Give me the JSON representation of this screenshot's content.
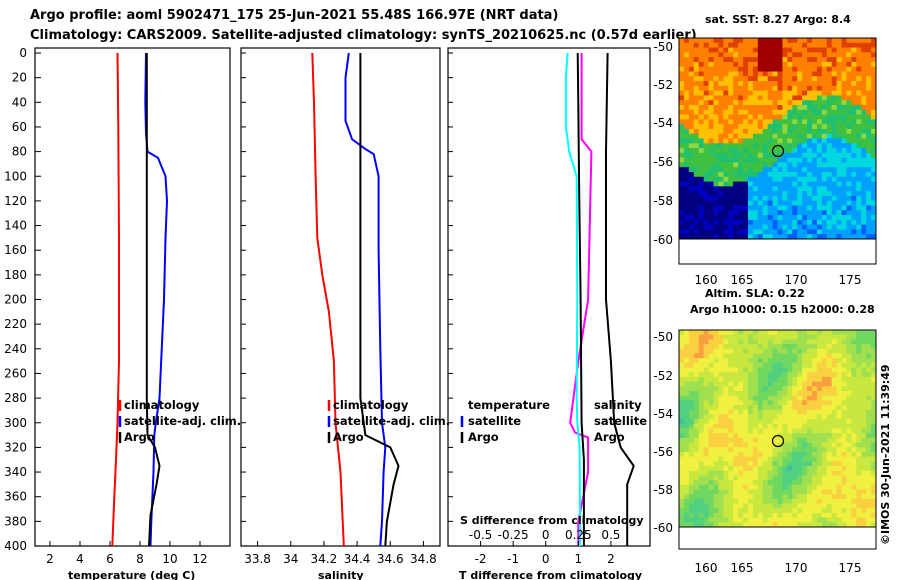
{
  "header": {
    "title_line1": "Argo profile: aoml 5902471_175 25-Jun-2021 55.48S 166.97E (NRT data)",
    "title_line2": "Climatology: CARS2009. Satellite-adjusted climatology: synTS_20210625.nc (0.57d earlier)"
  },
  "depth_ticks": [
    "0",
    "20",
    "40",
    "60",
    "80",
    "100",
    "120",
    "140",
    "160",
    "180",
    "200",
    "220",
    "240",
    "260",
    "280",
    "300",
    "320",
    "340",
    "360",
    "380",
    "400"
  ],
  "panels": {
    "temperature": {
      "xlabel": "temperature (deg C)",
      "ticks": [
        "2",
        "4",
        "6",
        "8",
        "10",
        "12"
      ],
      "legend": [
        "climatology",
        "satellite-adj. clim.",
        "Argo"
      ]
    },
    "salinity": {
      "xlabel": "salinity",
      "ticks": [
        "33.8",
        "34",
        "34.2",
        "34.4",
        "34.6",
        "34.8"
      ],
      "legend": [
        "climatology",
        "satellite-adj. clim.",
        "Argo"
      ]
    },
    "difference": {
      "xlabel": "T difference from climatology",
      "ticks": [
        "-2",
        "-1",
        "0",
        "1",
        "2"
      ],
      "s_label": "S difference from climatology",
      "s_ticks": [
        "-0.5",
        "-0.25",
        "0",
        "0.25",
        "0.5"
      ],
      "legend_left_title": "temperature",
      "legend_left": [
        "satellite",
        "Argo"
      ],
      "legend_right_title": "salinity",
      "legend_right": [
        "satellite",
        "Argo"
      ]
    }
  },
  "maps": {
    "sst_title": "sat. SST: 8.27 Argo: 8.4",
    "sla_title": "Altim. SLA: 0.22",
    "h_title": "Argo h1000: 0.15 h2000: 0.28",
    "lat_ticks": [
      "-50",
      "-52",
      "-54",
      "-56",
      "-58",
      "-60"
    ],
    "lon_ticks": [
      "160",
      "165",
      "170",
      "175"
    ],
    "credit": "©IMOS 30-Jun-2021 11:39:49"
  },
  "colors": {
    "climatology": "#ff0000",
    "satellite": "#0000ff",
    "argo": "#000000",
    "t_sat": "#ff00ff",
    "s_sat": "#00ffff",
    "s_argo": "#000000"
  },
  "chart_data": [
    {
      "type": "line",
      "title": "temperature (deg C)",
      "xlabel": "temperature (deg C)",
      "ylabel": "depth",
      "xlim": [
        1,
        14
      ],
      "ylim": [
        400,
        0
      ],
      "series": [
        {
          "name": "climatology",
          "color": "#ff0000",
          "points": [
            [
              6.5,
              0
            ],
            [
              6.55,
              60
            ],
            [
              6.6,
              150
            ],
            [
              6.6,
              250
            ],
            [
              6.5,
              300
            ],
            [
              6.4,
              330
            ],
            [
              6.25,
              370
            ],
            [
              6.15,
              400
            ]
          ]
        },
        {
          "name": "satellite-adj. clim.",
          "color": "#0000ff",
          "points": [
            [
              8.4,
              0
            ],
            [
              8.35,
              40
            ],
            [
              8.4,
              65
            ],
            [
              8.5,
              80
            ],
            [
              9.2,
              85
            ],
            [
              9.7,
              100
            ],
            [
              9.8,
              120
            ],
            [
              9.7,
              150
            ],
            [
              9.6,
              200
            ],
            [
              9.3,
              280
            ],
            [
              9.05,
              300
            ],
            [
              8.95,
              310
            ],
            [
              8.9,
              340
            ],
            [
              8.75,
              380
            ],
            [
              8.7,
              400
            ]
          ]
        },
        {
          "name": "Argo",
          "color": "#000000",
          "points": [
            [
              8.45,
              0
            ],
            [
              8.45,
              100
            ],
            [
              8.45,
              200
            ],
            [
              8.45,
              280
            ],
            [
              8.5,
              310
            ],
            [
              9.0,
              320
            ],
            [
              9.3,
              335
            ],
            [
              9.1,
              350
            ],
            [
              8.7,
              375
            ],
            [
              8.6,
              400
            ]
          ]
        }
      ]
    },
    {
      "type": "line",
      "title": "salinity",
      "xlabel": "salinity",
      "ylabel": "depth",
      "xlim": [
        33.7,
        34.9
      ],
      "ylim": [
        400,
        0
      ],
      "series": [
        {
          "name": "climatology",
          "color": "#ff0000",
          "points": [
            [
              34.13,
              0
            ],
            [
              34.14,
              40
            ],
            [
              34.15,
              100
            ],
            [
              34.16,
              150
            ],
            [
              34.19,
              180
            ],
            [
              34.23,
              210
            ],
            [
              34.26,
              250
            ],
            [
              34.27,
              300
            ],
            [
              34.3,
              340
            ],
            [
              34.32,
              400
            ]
          ]
        },
        {
          "name": "satellite-adj. clim.",
          "color": "#0000ff",
          "points": [
            [
              34.35,
              0
            ],
            [
              34.33,
              20
            ],
            [
              34.33,
              55
            ],
            [
              34.37,
              70
            ],
            [
              34.45,
              78
            ],
            [
              34.5,
              82
            ],
            [
              34.53,
              100
            ],
            [
              34.53,
              160
            ],
            [
              34.54,
              240
            ],
            [
              34.55,
              300
            ],
            [
              34.57,
              320
            ],
            [
              34.56,
              340
            ],
            [
              34.55,
              380
            ],
            [
              34.54,
              400
            ]
          ]
        },
        {
          "name": "Argo",
          "color": "#000000",
          "points": [
            [
              34.42,
              0
            ],
            [
              34.42,
              100
            ],
            [
              34.42,
              200
            ],
            [
              34.42,
              280
            ],
            [
              34.45,
              310
            ],
            [
              34.6,
              320
            ],
            [
              34.65,
              335
            ],
            [
              34.62,
              350
            ],
            [
              34.58,
              380
            ],
            [
              34.57,
              400
            ]
          ]
        }
      ]
    },
    {
      "type": "line",
      "title": "T difference from climatology",
      "xlabel": "T difference from climatology",
      "ylabel": "depth",
      "xlim": [
        -3,
        3.2
      ],
      "ylim": [
        400,
        0
      ],
      "secondary_xlabel": "S difference from climatology",
      "secondary_xlim": [
        -0.75,
        0.8
      ],
      "series": [
        {
          "name": "temperature satellite",
          "color": "#ff00ff",
          "points": [
            [
              1.1,
              0
            ],
            [
              1.1,
              70
            ],
            [
              1.4,
              80
            ],
            [
              1.3,
              200
            ],
            [
              1.0,
              250
            ],
            [
              0.75,
              300
            ],
            [
              0.9,
              308
            ],
            [
              1.3,
              312
            ],
            [
              1.3,
              340
            ],
            [
              1.0,
              380
            ],
            [
              1.0,
              400
            ]
          ]
        },
        {
          "name": "temperature Argo",
          "color": "#000000",
          "points": [
            [
              1.9,
              0
            ],
            [
              1.85,
              80
            ],
            [
              1.85,
              200
            ],
            [
              2.0,
              250
            ],
            [
              2.1,
              300
            ],
            [
              2.3,
              320
            ],
            [
              2.7,
              335
            ],
            [
              2.5,
              350
            ],
            [
              2.5,
              400
            ]
          ]
        },
        {
          "name": "salinity satellite",
          "color": "#00ffff",
          "points": [
            [
              0.67,
              0
            ],
            [
              0.62,
              20
            ],
            [
              0.62,
              60
            ],
            [
              0.72,
              80
            ],
            [
              0.95,
              100
            ],
            [
              0.97,
              200
            ],
            [
              0.95,
              280
            ],
            [
              0.97,
              300
            ],
            [
              1.04,
              320
            ],
            [
              1.05,
              380
            ],
            [
              1.05,
              400
            ]
          ]
        },
        {
          "name": "salinity Argo",
          "color": "#000000",
          "points": [
            [
              0.98,
              0
            ],
            [
              1.0,
              40
            ],
            [
              1.02,
              100
            ],
            [
              1.07,
              200
            ],
            [
              1.1,
              300
            ],
            [
              1.17,
              330
            ],
            [
              1.17,
              400
            ]
          ]
        }
      ]
    }
  ]
}
